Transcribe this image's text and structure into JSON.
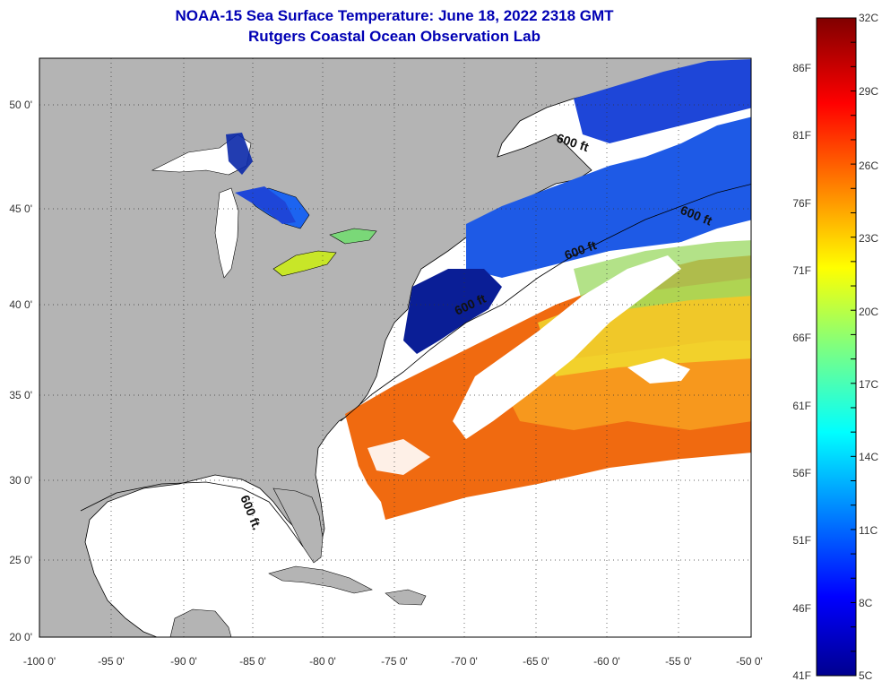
{
  "title": {
    "line1": "NOAA-15 Sea Surface Temperature:  June 18, 2022 2318 GMT",
    "line2": "Rutgers Coastal Ocean Observation Lab"
  },
  "map": {
    "lat_labels": [
      "50 0'",
      "45 0'",
      "40 0'",
      "35 0'",
      "30 0'",
      "25 0'",
      "20 0'"
    ],
    "lon_labels": [
      "-100 0'",
      "-95 0'",
      "-90 0'",
      "-85 0'",
      "-80 0'",
      "-75 0'",
      "-70 0'",
      "-65 0'",
      "-60 0'",
      "-55 0'",
      "-50 0'"
    ],
    "contour_label": "600 ft",
    "contour_label_short": "600 ft.",
    "colors": {
      "land": "#b4b4b4",
      "ocean_no_data": "#ffffff",
      "coastline": "#000000",
      "grid": "#333333"
    }
  },
  "colorbar": {
    "fahrenheit_labels": [
      "86F",
      "81F",
      "76F",
      "71F",
      "66F",
      "61F",
      "56F",
      "51F",
      "46F",
      "41F"
    ],
    "celsius_labels": [
      "32C",
      "29C",
      "26C",
      "23C",
      "20C",
      "17C",
      "14C",
      "11C",
      "8C",
      "5C"
    ],
    "range_celsius": [
      5,
      32
    ],
    "colormap": "jet"
  }
}
